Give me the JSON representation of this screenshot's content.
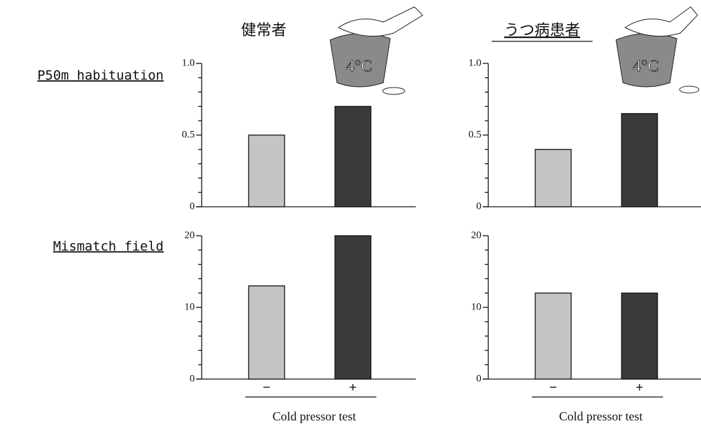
{
  "column_titles": [
    "健常者",
    "うつ病患者"
  ],
  "row_labels": [
    "P50m habituation",
    "Mismatch field"
  ],
  "illustrations": [
    {
      "label": "4°C"
    },
    {
      "label": "4°C"
    }
  ],
  "chart_data": [
    {
      "type": "bar",
      "categories": [
        null,
        null
      ],
      "values": [
        0.5,
        0.7
      ],
      "colors": [
        "#c4c4c4",
        "#3a3a3a"
      ],
      "ylim": [
        0,
        1
      ],
      "yticks": [
        0,
        0.5,
        {
          "value": 1,
          "label": "1.0"
        }
      ],
      "yminorticks": [
        0.1,
        0.2,
        0.3,
        0.4,
        0.6,
        0.7,
        0.8,
        0.9
      ]
    },
    {
      "type": "bar",
      "categories": [
        null,
        null
      ],
      "values": [
        0.4,
        0.65
      ],
      "colors": [
        "#c4c4c4",
        "#3a3a3a"
      ],
      "ylim": [
        0,
        1
      ],
      "yticks": [
        0,
        0.5,
        {
          "value": 1,
          "label": "1.0"
        }
      ],
      "yminorticks": [
        0.1,
        0.2,
        0.3,
        0.4,
        0.6,
        0.7,
        0.8,
        0.9
      ]
    },
    {
      "type": "bar",
      "categories": [
        "−",
        "+"
      ],
      "values": [
        13,
        20
      ],
      "colors": [
        "#c4c4c4",
        "#3a3a3a"
      ],
      "xlabel": "Cold pressor test",
      "ylim": [
        0,
        20
      ],
      "yticks": [
        0,
        10,
        20
      ],
      "yminorticks": [
        2,
        4,
        6,
        8,
        12,
        14,
        16,
        18
      ]
    },
    {
      "type": "bar",
      "categories": [
        "−",
        "+"
      ],
      "values": [
        12,
        12
      ],
      "colors": [
        "#c4c4c4",
        "#3a3a3a"
      ],
      "xlabel": "Cold pressor test",
      "ylim": [
        0,
        20
      ],
      "yticks": [
        0,
        10,
        20
      ],
      "yminorticks": [
        2,
        4,
        6,
        8,
        12,
        14,
        16,
        18
      ]
    }
  ]
}
